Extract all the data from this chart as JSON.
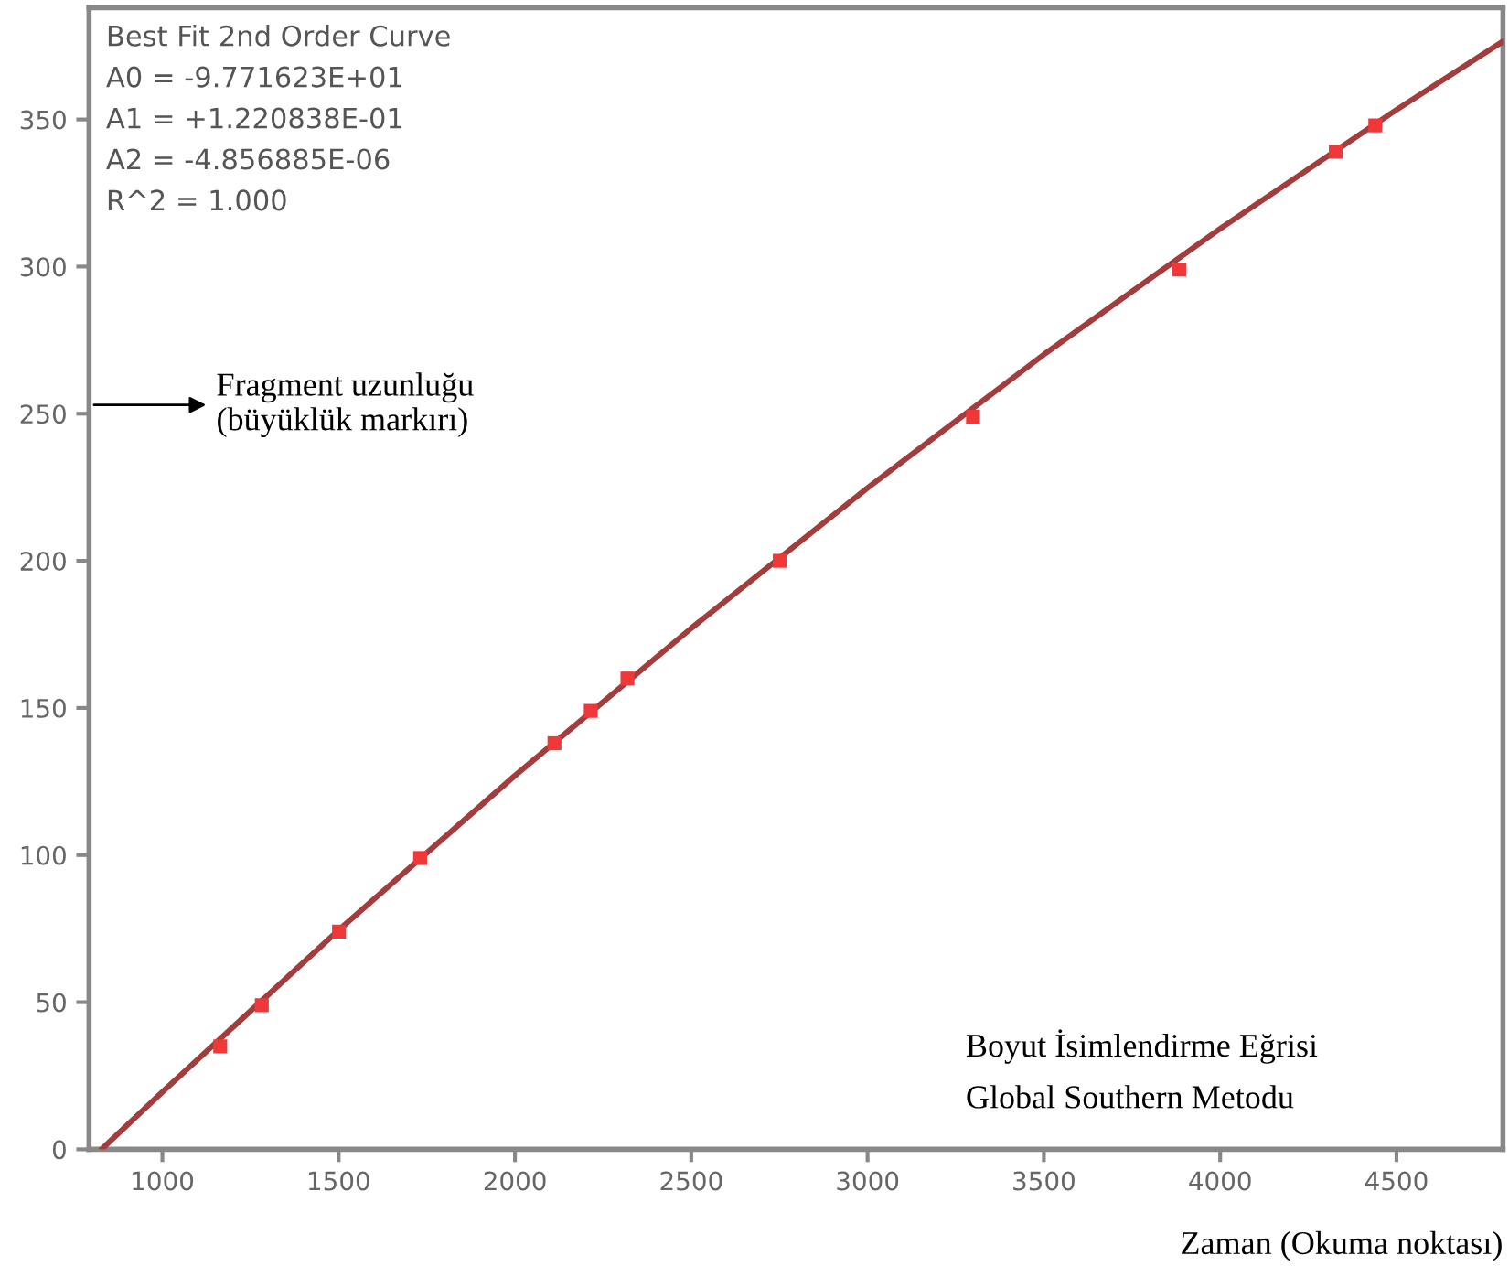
{
  "chart_data": {
    "type": "scatter",
    "xlabel": "Zaman (Okuma noktası)",
    "xlim": [
      792,
      4802
    ],
    "ylim": [
      0,
      388
    ],
    "xticks": [
      1000,
      1500,
      2000,
      2500,
      3000,
      3500,
      4000,
      4500
    ],
    "yticks": [
      0,
      50,
      100,
      150,
      200,
      250,
      300,
      350
    ],
    "grid": false,
    "legend": false,
    "series": [
      {
        "marker": "square",
        "color": "#f03838",
        "x": [
          1164,
          1282,
          1501,
          1731,
          2112,
          2215,
          2319,
          2751,
          3299,
          3884,
          4328,
          4440
        ],
        "values": [
          35,
          49,
          74,
          99,
          138,
          149,
          160,
          200,
          249,
          299,
          339,
          348
        ]
      },
      {
        "type": "line",
        "color": "#a33c3c",
        "line_style": "solid",
        "x": [
          830,
          1000,
          1500,
          2000,
          2500,
          3000,
          3500,
          4000,
          4500,
          4800
        ],
        "values": [
          0.3,
          19.5,
          74.5,
          127.0,
          177.1,
          224.8,
          270.1,
          312.9,
          353.3,
          376.4
        ]
      }
    ],
    "annotations": [
      "Best Fit 2nd Order Curve",
      "A0 = -9.771623E+01",
      "A1 = +1.220838E-01",
      "A2 = -4.856885E-06",
      "R^2 = 1.000",
      "Fragment uzunluğu\n(büyüklük markırı)",
      "Boyut İsimlendirme Eğrisi",
      "Global Southern Metodu"
    ]
  }
}
